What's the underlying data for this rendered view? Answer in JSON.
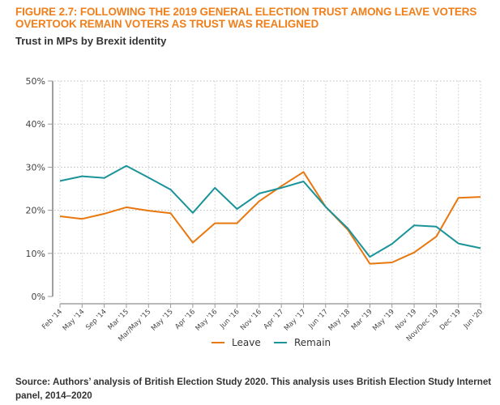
{
  "figure": {
    "title": "FIGURE 2.7: FOLLOWING THE 2019 GENERAL ELECTION TRUST AMONG LEAVE VOTERS OVERTOOK REMAIN VOTERS AS TRUST WAS REALIGNED",
    "subtitle": "Trust in MPs by Brexit identity",
    "source": "Source: Authors’ analysis of British Election Study 2020. This analysis uses British Election Study Internet panel, 2014–2020"
  },
  "chart_data": {
    "type": "line",
    "title": "Trust in MPs by Brexit identity",
    "xlabel": "",
    "ylabel": "",
    "ylim": [
      0,
      50
    ],
    "y_ticks": [
      0,
      10,
      20,
      30,
      40,
      50
    ],
    "y_tick_labels": [
      "0%",
      "10%",
      "20%",
      "30%",
      "40%",
      "50%"
    ],
    "grid": true,
    "legend_position": "bottom-center",
    "categories": [
      "Feb '14",
      "May '14",
      "Sep '14",
      "Mar '15",
      "Mar/May '15",
      "May '15",
      "Apr '16",
      "May '16",
      "Jun '16",
      "Nov '16",
      "Apr '17",
      "May '17",
      "Jun '17",
      "May '18",
      "Mar '19",
      "May '19",
      "Nov '19",
      "Nov/Dec '19",
      "Dec '19",
      "Jun '20"
    ],
    "series": [
      {
        "name": "Leave",
        "color": "#e8770e",
        "values": [
          18.6,
          18.0,
          19.2,
          20.7,
          19.9,
          19.3,
          12.5,
          17.0,
          17.0,
          22.1,
          25.6,
          28.9,
          20.8,
          15.5,
          7.6,
          7.9,
          10.2,
          13.9,
          22.9,
          23.1
        ]
      },
      {
        "name": "Remain",
        "color": "#1a9399",
        "values": [
          26.8,
          27.9,
          27.5,
          30.3,
          27.6,
          24.8,
          19.4,
          25.2,
          20.3,
          23.9,
          25.2,
          26.7,
          20.8,
          15.8,
          9.2,
          12.2,
          16.5,
          16.2,
          12.3,
          11.2
        ]
      }
    ]
  }
}
